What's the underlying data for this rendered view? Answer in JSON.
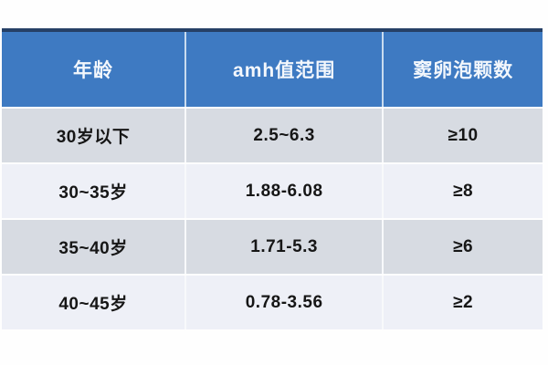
{
  "chart_data": {
    "type": "table",
    "columns": [
      "年龄",
      "amh值范围",
      "窦卵泡颗数"
    ],
    "rows": [
      [
        "30岁以下",
        "2.5~6.3",
        "≥10"
      ],
      [
        "30~35岁",
        "1.88-6.08",
        "≥8"
      ],
      [
        "35~40岁",
        "1.71-5.3",
        "≥6"
      ],
      [
        "40~45岁",
        "0.78-3.56",
        "≥2"
      ]
    ],
    "title": "",
    "layout_hints": {
      "header_position": "top",
      "row_striping": [
        "gray",
        "light",
        "gray",
        "light"
      ]
    }
  },
  "colors": {
    "header_bg": "#3e7ac2",
    "header_top_edge": "#264066",
    "header_text": "#f3f7fc",
    "row_gray_bg": "#d7dbe2",
    "row_light_bg": "#eef0f7",
    "cell_text": "#161616",
    "page_bg": "#fefefe"
  }
}
